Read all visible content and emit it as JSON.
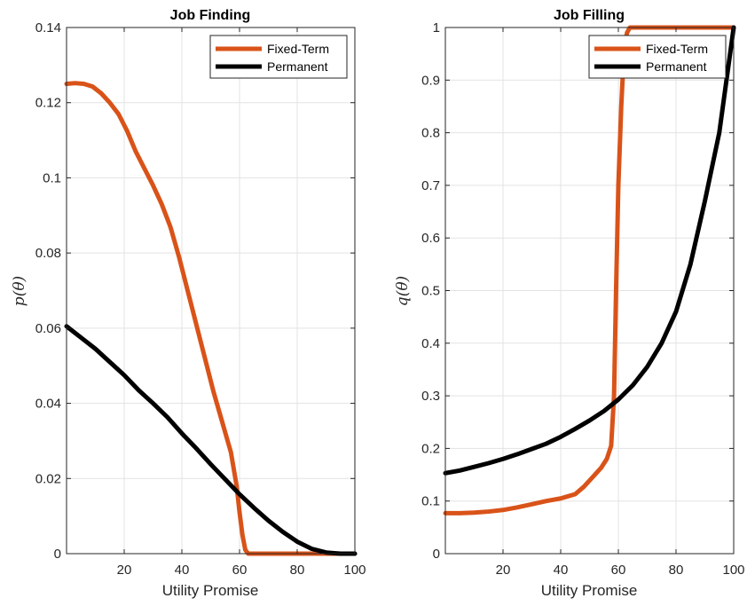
{
  "chart_data": [
    {
      "type": "line",
      "title": "Job Finding",
      "xlabel": "Utility Promise",
      "ylabel": "p(θ)",
      "xlim": [
        0,
        100
      ],
      "ylim": [
        0,
        0.14
      ],
      "xticks": [
        20,
        40,
        60,
        80,
        100
      ],
      "xtick_labels": [
        "20",
        "40",
        "60",
        "80",
        "100"
      ],
      "yticks": [
        0,
        0.02,
        0.04,
        0.06,
        0.08,
        0.1,
        0.12,
        0.14
      ],
      "ytick_labels": [
        "0",
        "0.02",
        "0.04",
        "0.06",
        "0.08",
        "0.1",
        "0.12",
        "0.14"
      ],
      "grid": true,
      "legend_position": "top-right",
      "series": [
        {
          "name": "Fixed-Term",
          "color": "#D95319",
          "x": [
            0,
            3,
            6,
            9,
            12,
            15,
            18,
            21,
            24,
            27,
            30,
            33,
            36,
            39,
            42,
            45,
            48,
            51,
            54,
            57,
            59,
            60,
            61,
            62,
            63,
            64,
            65,
            70,
            80,
            90,
            100
          ],
          "y": [
            0.125,
            0.1252,
            0.125,
            0.1243,
            0.1225,
            0.12,
            0.117,
            0.1125,
            0.107,
            0.1025,
            0.098,
            0.093,
            0.087,
            0.079,
            0.07,
            0.061,
            0.052,
            0.043,
            0.035,
            0.027,
            0.018,
            0.011,
            0.005,
            0.001,
            0.0,
            0.0,
            0.0,
            0.0,
            0.0,
            0.0,
            0.0
          ]
        },
        {
          "name": "Permanent",
          "color": "#000000",
          "x": [
            0,
            5,
            10,
            15,
            20,
            25,
            30,
            35,
            40,
            45,
            50,
            55,
            60,
            65,
            70,
            75,
            80,
            85,
            90,
            95,
            100
          ],
          "y": [
            0.0605,
            0.0575,
            0.0545,
            0.051,
            0.0475,
            0.0435,
            0.04,
            0.0363,
            0.032,
            0.028,
            0.0238,
            0.0198,
            0.0158,
            0.0122,
            0.0088,
            0.0058,
            0.0032,
            0.0013,
            0.0003,
            0.0,
            0.0
          ]
        }
      ]
    },
    {
      "type": "line",
      "title": "Job Filling",
      "xlabel": "Utility Promise",
      "ylabel": "q(θ)",
      "xlim": [
        0,
        100
      ],
      "ylim": [
        0,
        1
      ],
      "xticks": [
        20,
        40,
        60,
        80,
        100
      ],
      "xtick_labels": [
        "20",
        "40",
        "60",
        "80",
        "100"
      ],
      "yticks": [
        0,
        0.1,
        0.2,
        0.3,
        0.4,
        0.5,
        0.6,
        0.7,
        0.8,
        0.9,
        1
      ],
      "ytick_labels": [
        "0",
        "0.1",
        "0.2",
        "0.3",
        "0.4",
        "0.5",
        "0.6",
        "0.7",
        "0.8",
        "0.9",
        "1"
      ],
      "grid": true,
      "legend_position": "top-right",
      "series": [
        {
          "name": "Fixed-Term",
          "color": "#D95319",
          "x": [
            0,
            5,
            10,
            15,
            20,
            25,
            30,
            35,
            40,
            45,
            48,
            51,
            54,
            56,
            57.5,
            58.5,
            59.2,
            60,
            61,
            62,
            63,
            64,
            66,
            70,
            80,
            90,
            100
          ],
          "y": [
            0.077,
            0.077,
            0.078,
            0.08,
            0.083,
            0.088,
            0.094,
            0.1,
            0.105,
            0.113,
            0.127,
            0.145,
            0.163,
            0.18,
            0.205,
            0.3,
            0.5,
            0.7,
            0.85,
            0.96,
            0.99,
            1.0,
            1.0,
            1.0,
            1.0,
            1.0,
            1.0
          ]
        },
        {
          "name": "Permanent",
          "color": "#000000",
          "x": [
            0,
            5,
            10,
            15,
            20,
            25,
            30,
            35,
            40,
            45,
            50,
            55,
            60,
            65,
            70,
            75,
            80,
            85,
            90,
            95,
            100
          ],
          "y": [
            0.153,
            0.158,
            0.165,
            0.172,
            0.18,
            0.189,
            0.199,
            0.209,
            0.222,
            0.237,
            0.253,
            0.271,
            0.293,
            0.32,
            0.355,
            0.4,
            0.46,
            0.55,
            0.67,
            0.8,
            1.0
          ]
        }
      ]
    }
  ]
}
